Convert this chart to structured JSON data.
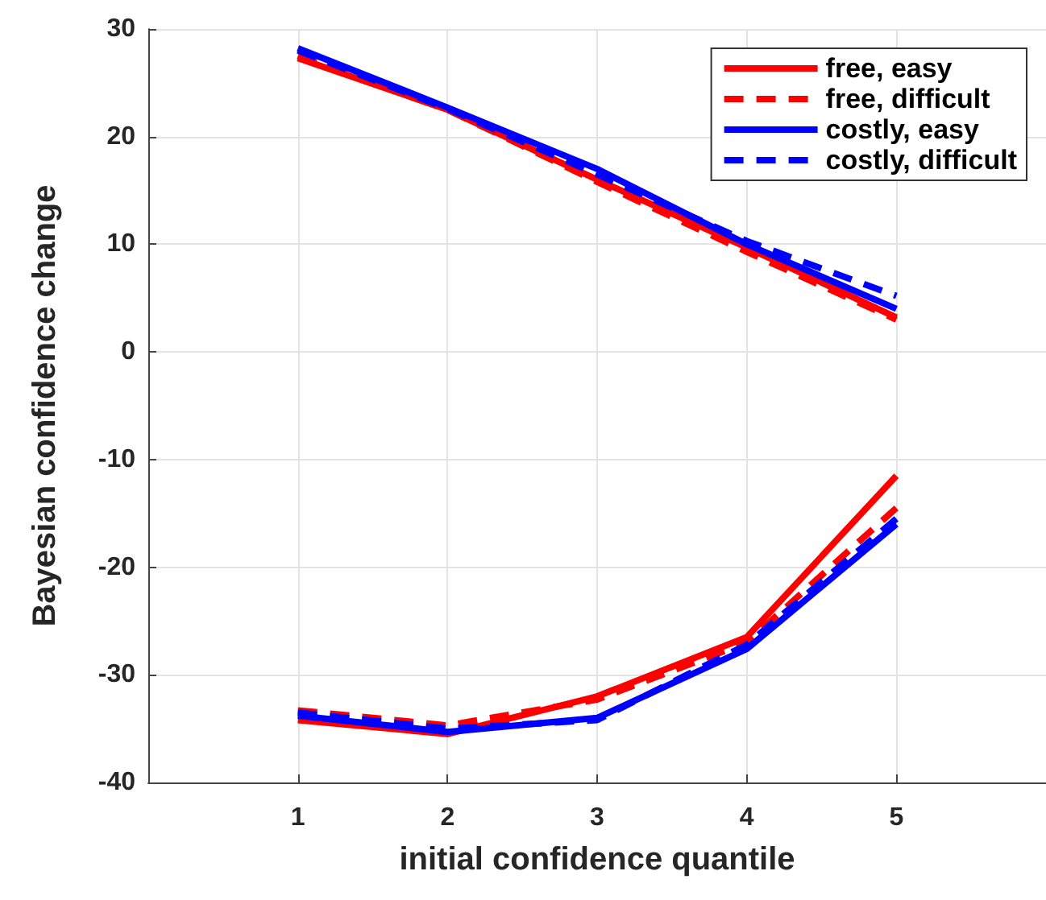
{
  "chart_data": {
    "type": "line",
    "xlabel": "initial confidence quantile",
    "ylabel": "Bayesian confidence change",
    "x": [
      1,
      2,
      3,
      4,
      5
    ],
    "series": [
      {
        "name": "free, easy",
        "color": "#ff0000",
        "line_style": "solid",
        "values": [
          27.3,
          22.5,
          16,
          9.7,
          3.2
        ]
      },
      {
        "name": "free, difficult",
        "color": "#ff0000",
        "line_style": "dashed",
        "values": [
          27.5,
          22.5,
          15.8,
          9.3,
          3
        ]
      },
      {
        "name": "costly, easy",
        "color": "#0000ff",
        "line_style": "solid",
        "values": [
          28.2,
          22.7,
          17,
          10,
          4
        ]
      },
      {
        "name": "costly, difficult",
        "color": "#0000ff",
        "line_style": "dashed",
        "values": [
          28,
          22.6,
          16.5,
          10.3,
          5.2
        ]
      },
      {
        "color": "#ff0000",
        "line_style": "solid",
        "values": [
          -34.2,
          -35.5,
          -32,
          -26.5,
          -11.5
        ]
      },
      {
        "color": "#ff0000",
        "line_style": "dashed",
        "values": [
          -33.3,
          -34.7,
          -32.3,
          -27,
          -14.5
        ]
      },
      {
        "color": "#0000ff",
        "line_style": "solid",
        "values": [
          -33.8,
          -35.3,
          -34,
          -27.6,
          -16
        ]
      },
      {
        "color": "#0000ff",
        "line_style": "dashed",
        "values": [
          -33.5,
          -35,
          -34.2,
          -27.2,
          -15.5
        ]
      }
    ],
    "xlim": [
      0,
      6
    ],
    "xticks": [
      1,
      2,
      3,
      4,
      5
    ],
    "ylim": [
      -40,
      30
    ],
    "yticks": [
      -40,
      -30,
      -20,
      -10,
      0,
      10,
      20,
      30
    ],
    "grid": true,
    "legend": "top right",
    "marker": "none"
  }
}
